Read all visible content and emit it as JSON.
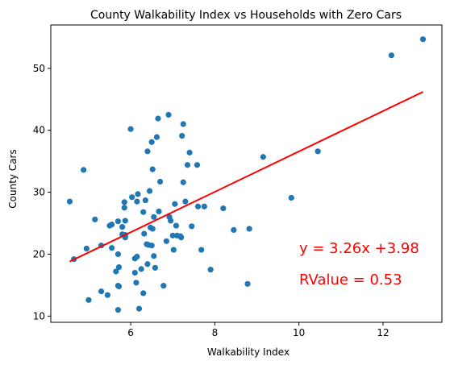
{
  "chart_data": {
    "type": "scatter",
    "title": "County Walkability Index vs Households with Zero Cars",
    "xlabel": "Walkability Index",
    "ylabel": "County Cars",
    "xlim": [
      4.1,
      13.4
    ],
    "ylim": [
      9.0,
      57.0
    ],
    "xticks": [
      6,
      8,
      10,
      12
    ],
    "yticks": [
      10,
      20,
      30,
      40,
      50
    ],
    "grid": false,
    "legend": "none",
    "colors": {
      "points": "#1f77b4",
      "regression": "#ff0000",
      "annotation": "#ff0000"
    },
    "points": [
      [
        4.55,
        28.5
      ],
      [
        4.65,
        19.2
      ],
      [
        4.88,
        33.6
      ],
      [
        4.95,
        20.9
      ],
      [
        5.0,
        12.6
      ],
      [
        5.15,
        25.6
      ],
      [
        5.3,
        14.0
      ],
      [
        5.3,
        21.4
      ],
      [
        5.45,
        13.4
      ],
      [
        5.5,
        24.6
      ],
      [
        5.55,
        24.8
      ],
      [
        5.55,
        21.0
      ],
      [
        5.65,
        17.2
      ],
      [
        5.7,
        14.9
      ],
      [
        5.7,
        25.3
      ],
      [
        5.72,
        17.9
      ],
      [
        5.72,
        14.8
      ],
      [
        5.7,
        11.0
      ],
      [
        5.7,
        20.0
      ],
      [
        5.8,
        23.2
      ],
      [
        5.8,
        24.4
      ],
      [
        5.85,
        27.5
      ],
      [
        5.85,
        28.4
      ],
      [
        5.87,
        25.4
      ],
      [
        5.87,
        22.7
      ],
      [
        5.87,
        23.1
      ],
      [
        6.0,
        40.2
      ],
      [
        6.03,
        29.2
      ],
      [
        6.1,
        19.3
      ],
      [
        6.1,
        17.0
      ],
      [
        6.13,
        15.4
      ],
      [
        6.15,
        19.6
      ],
      [
        6.15,
        28.5
      ],
      [
        6.17,
        29.7
      ],
      [
        6.2,
        11.2
      ],
      [
        6.25,
        17.6
      ],
      [
        6.3,
        13.7
      ],
      [
        6.3,
        26.8
      ],
      [
        6.32,
        23.3
      ],
      [
        6.35,
        28.7
      ],
      [
        6.38,
        21.6
      ],
      [
        6.4,
        36.6
      ],
      [
        6.4,
        18.4
      ],
      [
        6.42,
        21.5
      ],
      [
        6.45,
        30.2
      ],
      [
        6.47,
        24.3
      ],
      [
        6.5,
        21.4
      ],
      [
        6.5,
        38.1
      ],
      [
        6.52,
        24.1
      ],
      [
        6.52,
        33.7
      ],
      [
        6.55,
        26.0
      ],
      [
        6.55,
        19.7
      ],
      [
        6.58,
        17.8
      ],
      [
        6.62,
        38.9
      ],
      [
        6.65,
        41.9
      ],
      [
        6.67,
        26.9
      ],
      [
        6.7,
        31.7
      ],
      [
        6.78,
        14.9
      ],
      [
        6.85,
        22.1
      ],
      [
        6.9,
        42.5
      ],
      [
        6.92,
        26.0
      ],
      [
        6.95,
        25.4
      ],
      [
        7.0,
        23.0
      ],
      [
        7.02,
        20.7
      ],
      [
        7.05,
        28.1
      ],
      [
        7.08,
        24.6
      ],
      [
        7.1,
        23.0
      ],
      [
        7.18,
        22.9
      ],
      [
        7.2,
        22.7
      ],
      [
        7.22,
        39.1
      ],
      [
        7.25,
        41.0
      ],
      [
        7.25,
        31.6
      ],
      [
        7.3,
        28.5
      ],
      [
        7.35,
        34.4
      ],
      [
        7.4,
        36.4
      ],
      [
        7.45,
        24.5
      ],
      [
        7.58,
        34.4
      ],
      [
        7.6,
        27.7
      ],
      [
        7.68,
        20.7
      ],
      [
        7.75,
        27.7
      ],
      [
        7.9,
        17.5
      ],
      [
        8.2,
        27.4
      ],
      [
        8.45,
        23.9
      ],
      [
        8.78,
        15.2
      ],
      [
        8.82,
        24.1
      ],
      [
        9.15,
        35.7
      ],
      [
        9.82,
        29.1
      ],
      [
        10.45,
        36.6
      ],
      [
        12.2,
        52.1
      ],
      [
        12.95,
        54.7
      ]
    ],
    "regression": {
      "x_start": 4.55,
      "x_end": 12.95,
      "slope": 3.26,
      "intercept": 3.98
    },
    "annotations": {
      "equation": "y = 3.26x +3.98",
      "rvalue": "RValue = 0.53"
    }
  }
}
